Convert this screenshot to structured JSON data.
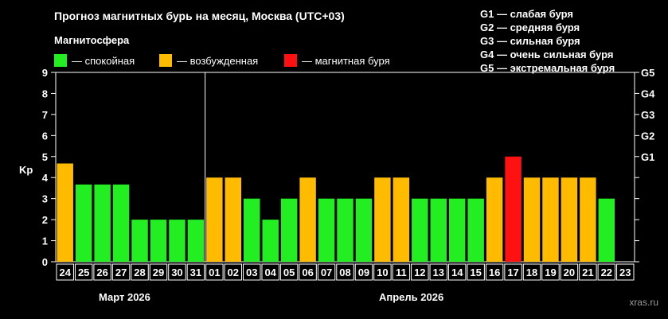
{
  "colors": {
    "calm": "#22ee22",
    "excited": "#ffbb00",
    "storm": "#ff1111",
    "background": "#000000",
    "axis": "#ffffff"
  },
  "header": {
    "title": "Прогноз магнитных бурь на месяц, Москва (UTC+03)",
    "subtitle": "Магнитосфера"
  },
  "legend": [
    {
      "label": "— спокойная",
      "color": "#22ee22"
    },
    {
      "label": "— возбужденная",
      "color": "#ffbb00"
    },
    {
      "label": "— магнитная буря",
      "color": "#ff1111"
    }
  ],
  "g_legend": [
    "G1 — слабая буря",
    "G2 — средняя буря",
    "G3 — сильная буря",
    "G4 — очень сильная буря",
    "G5 — экстремальная буря"
  ],
  "months": {
    "march": "Март 2026",
    "april": "Апрель 2026"
  },
  "watermark": "xras.ru",
  "chart_data": {
    "type": "bar",
    "ylabel": "Kp",
    "ylim": [
      0,
      9
    ],
    "yticks": [
      0,
      1,
      2,
      3,
      4,
      5,
      6,
      7,
      8,
      9
    ],
    "right_ticks": [
      {
        "kp": 5,
        "label": "G1"
      },
      {
        "kp": 6,
        "label": "G2"
      },
      {
        "kp": 7,
        "label": "G3"
      },
      {
        "kp": 8,
        "label": "G4"
      },
      {
        "kp": 9,
        "label": "G5"
      }
    ],
    "categories": [
      "24",
      "25",
      "26",
      "27",
      "28",
      "29",
      "30",
      "31",
      "01",
      "02",
      "03",
      "04",
      "05",
      "06",
      "07",
      "08",
      "09",
      "10",
      "11",
      "12",
      "13",
      "14",
      "15",
      "16",
      "17",
      "18",
      "19",
      "20",
      "21",
      "22",
      "23"
    ],
    "values": [
      4.67,
      3.67,
      3.67,
      3.67,
      2,
      2,
      2,
      2,
      4,
      4,
      3,
      2,
      3,
      4,
      3,
      3,
      3,
      4,
      4,
      3,
      3,
      3,
      3,
      4,
      5,
      4,
      4,
      4,
      4,
      3,
      null
    ],
    "levels": [
      "excited",
      "calm",
      "calm",
      "calm",
      "calm",
      "calm",
      "calm",
      "calm",
      "excited",
      "excited",
      "calm",
      "calm",
      "calm",
      "excited",
      "calm",
      "calm",
      "calm",
      "excited",
      "excited",
      "calm",
      "calm",
      "calm",
      "calm",
      "excited",
      "storm",
      "excited",
      "excited",
      "excited",
      "excited",
      "calm",
      "none"
    ],
    "month_split_after": "31",
    "grid": false
  }
}
